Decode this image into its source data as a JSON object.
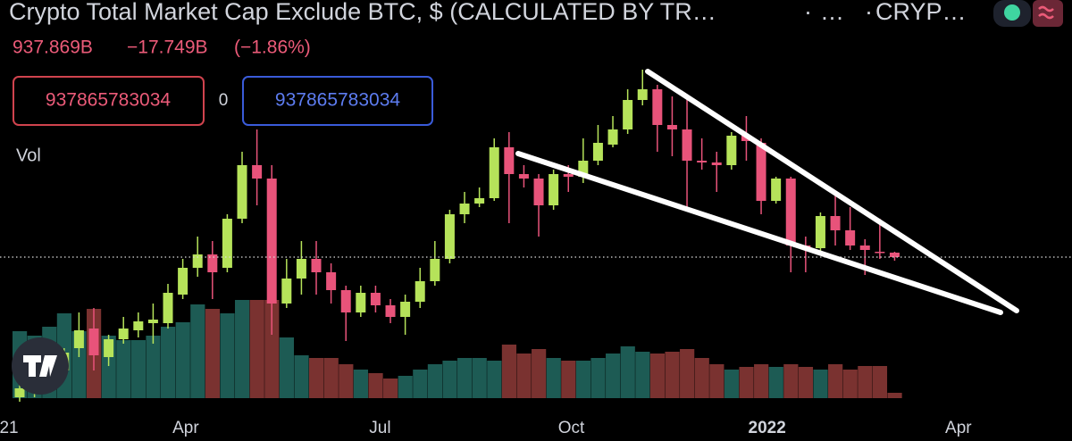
{
  "header": {
    "title": "Crypto Total Market Cap Exclude BTC, $ (CALCULATED BY TR…",
    "dot": "·",
    "more": "…",
    "symbol": "CRYP…",
    "last": "937.869B",
    "change": "−17.749B",
    "change_pct": "(−1.86%)",
    "inputs": [
      "937865783034",
      "0",
      "937865783034"
    ],
    "volume_label": "Vol"
  },
  "chart_data": {
    "type": "candlestick",
    "xlim": [
      -1.325,
      70.96
    ],
    "xticks": [
      {
        "value": -0.72,
        "label": "21"
      },
      {
        "value": 11.2,
        "label": "Apr"
      },
      {
        "value": 24.3,
        "label": "Jul"
      },
      {
        "value": 37.2,
        "label": "Oct"
      },
      {
        "value": 50.4,
        "label": "2022"
      },
      {
        "value": 63.3,
        "label": "Apr"
      }
    ],
    "ylim": [
      114,
      2090
    ],
    "vlim": [
      0,
      120
    ],
    "up_color": "#b6e35a",
    "down_color": "#e8537a",
    "volume_up_color": "#1d5b54",
    "volume_down_color": "#7a3230",
    "open": [
      310,
      330,
      370,
      430,
      530,
      618,
      490,
      570,
      610,
      642,
      642,
      770,
      890,
      950,
      890,
      1110,
      1350,
      1290,
      730,
      842,
      930,
      870,
      790,
      690,
      778,
      722,
      670,
      738,
      830,
      930,
      1130,
      1178,
      1202,
      1430,
      1310,
      1290,
      1170,
      1310,
      1298,
      1370,
      1442,
      1510,
      1642,
      1690,
      1530,
      1510,
      1370,
      1362,
      1350,
      1482,
      1450,
      1190,
      1290,
      990,
      978,
      1122,
      1058,
      990,
      962,
      958
    ],
    "high": [
      370,
      410,
      490,
      530,
      690,
      710,
      590,
      670,
      690,
      730,
      818,
      930,
      1030,
      1010,
      1130,
      1410,
      1510,
      1350,
      930,
      1010,
      1010,
      910,
      810,
      810,
      810,
      750,
      770,
      890,
      1010,
      1150,
      1230,
      1250,
      1470,
      1498,
      1350,
      1310,
      1330,
      1350,
      1470,
      1530,
      1570,
      1690,
      1778,
      1710,
      1658,
      1650,
      1470,
      1410,
      1498,
      1570,
      1470,
      1298,
      1298,
      1030,
      1138,
      1230,
      1162,
      1018,
      1110,
      962
    ],
    "low": [
      290,
      310,
      330,
      410,
      490,
      430,
      450,
      550,
      578,
      550,
      618,
      750,
      850,
      750,
      870,
      1090,
      1170,
      590,
      710,
      770,
      770,
      730,
      562,
      670,
      690,
      642,
      590,
      710,
      810,
      910,
      1090,
      1162,
      1190,
      1090,
      1250,
      1030,
      1150,
      1230,
      1270,
      1350,
      1430,
      1490,
      1618,
      1410,
      1390,
      1150,
      1330,
      1230,
      1330,
      1370,
      1130,
      1178,
      870,
      870,
      962,
      990,
      970,
      858,
      930,
      922
    ],
    "close": [
      350,
      390,
      450,
      510,
      610,
      498,
      570,
      618,
      650,
      658,
      778,
      890,
      950,
      870,
      1110,
      1350,
      1290,
      730,
      842,
      930,
      870,
      790,
      690,
      778,
      722,
      670,
      738,
      830,
      930,
      1130,
      1178,
      1202,
      1430,
      1310,
      1290,
      1170,
      1310,
      1298,
      1370,
      1450,
      1510,
      1642,
      1690,
      1530,
      1510,
      1370,
      1362,
      1350,
      1482,
      1458,
      1190,
      1290,
      990,
      978,
      1122,
      1058,
      990,
      970,
      958,
      937.869
    ],
    "volume": [
      75,
      70,
      80,
      95,
      75,
      100,
      70,
      65,
      65,
      70,
      80,
      85,
      105,
      100,
      95,
      110,
      110,
      110,
      68,
      48,
      45,
      45,
      38,
      32,
      28,
      22,
      25,
      32,
      38,
      42,
      45,
      45,
      42,
      60,
      50,
      55,
      45,
      42,
      42,
      45,
      50,
      58,
      52,
      50,
      52,
      55,
      45,
      38,
      32,
      35,
      38,
      35,
      38,
      35,
      32,
      38,
      32,
      36,
      36,
      6
    ]
  }
}
